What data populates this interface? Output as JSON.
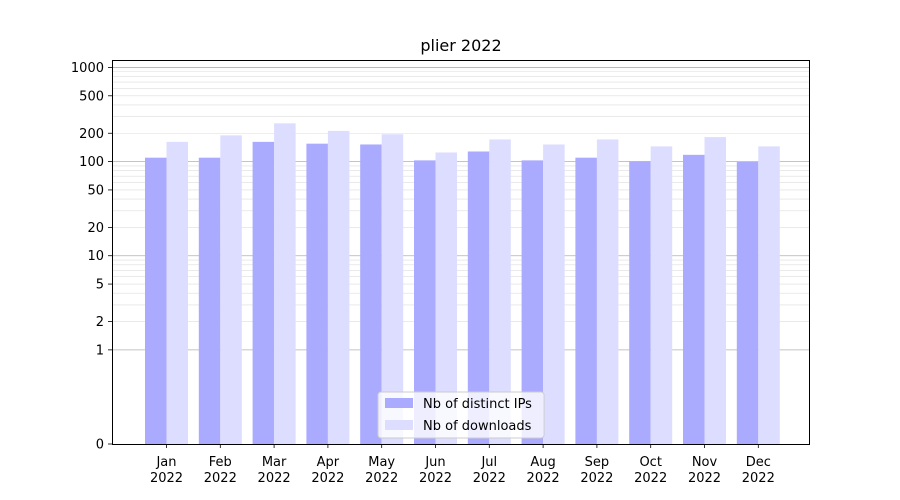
{
  "chart_data": {
    "type": "bar",
    "title": "plier 2022",
    "xlabel": "",
    "ylabel": "",
    "scale": "symlog",
    "ylim": [
      0,
      1200
    ],
    "grid": true,
    "legend_position": "bottom-center",
    "categories": [
      [
        "Jan",
        "2022"
      ],
      [
        "Feb",
        "2022"
      ],
      [
        "Mar",
        "2022"
      ],
      [
        "Apr",
        "2022"
      ],
      [
        "May",
        "2022"
      ],
      [
        "Jun",
        "2022"
      ],
      [
        "Jul",
        "2022"
      ],
      [
        "Aug",
        "2022"
      ],
      [
        "Sep",
        "2022"
      ],
      [
        "Oct",
        "2022"
      ],
      [
        "Nov",
        "2022"
      ],
      [
        "Dec",
        "2022"
      ]
    ],
    "yticks": [
      {
        "value": 0,
        "label": "0"
      },
      {
        "value": 1,
        "label": "1"
      },
      {
        "value": 2,
        "label": "2"
      },
      {
        "value": 5,
        "label": "5"
      },
      {
        "value": 10,
        "label": "10"
      },
      {
        "value": 20,
        "label": "20"
      },
      {
        "value": 50,
        "label": "50"
      },
      {
        "value": 100,
        "label": "100"
      },
      {
        "value": 200,
        "label": "200"
      },
      {
        "value": 500,
        "label": "500"
      },
      {
        "value": 1000,
        "label": "1000"
      }
    ],
    "series": [
      {
        "name": "Nb of distinct IPs",
        "color": "#aaaaff",
        "values": [
          110,
          110,
          162,
          155,
          152,
          103,
          128,
          103,
          110,
          101,
          118,
          100
        ]
      },
      {
        "name": "Nb of downloads",
        "color": "#ddddff",
        "values": [
          162,
          190,
          255,
          212,
          195,
          125,
          172,
          152,
          172,
          145,
          182,
          145
        ]
      }
    ]
  }
}
